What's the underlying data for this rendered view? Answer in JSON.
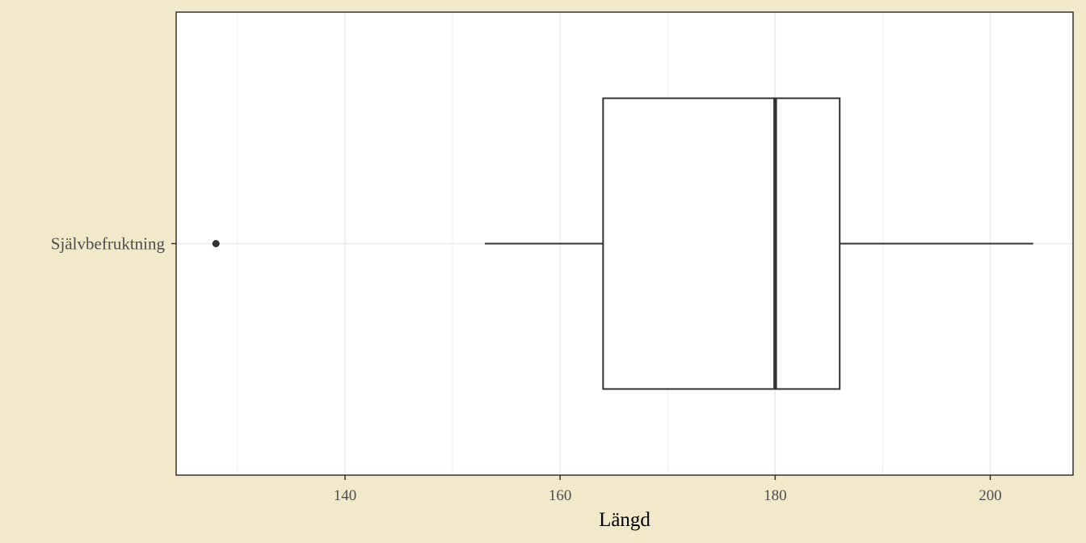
{
  "chart_data": {
    "type": "boxplot",
    "orientation": "horizontal",
    "xlabel": "Längd",
    "ylabel": "",
    "xlim": [
      124.3,
      207.7
    ],
    "x_ticks": [
      140,
      160,
      180,
      200
    ],
    "x_minor_ticks": [
      130,
      150,
      170,
      190
    ],
    "grid": true,
    "categories": [
      "Självbefruktning"
    ],
    "boxes": [
      {
        "category": "Självbefruktning",
        "whisker_low": 153,
        "q1": 164,
        "median": 180,
        "q3": 186,
        "whisker_high": 204,
        "outliers": [
          128
        ]
      }
    ]
  },
  "colors": {
    "background": "#f2e9cb",
    "panel": "#ffffff",
    "grid": "#ebebeb",
    "box_line": "#333333",
    "text": "#4d4d4d"
  }
}
